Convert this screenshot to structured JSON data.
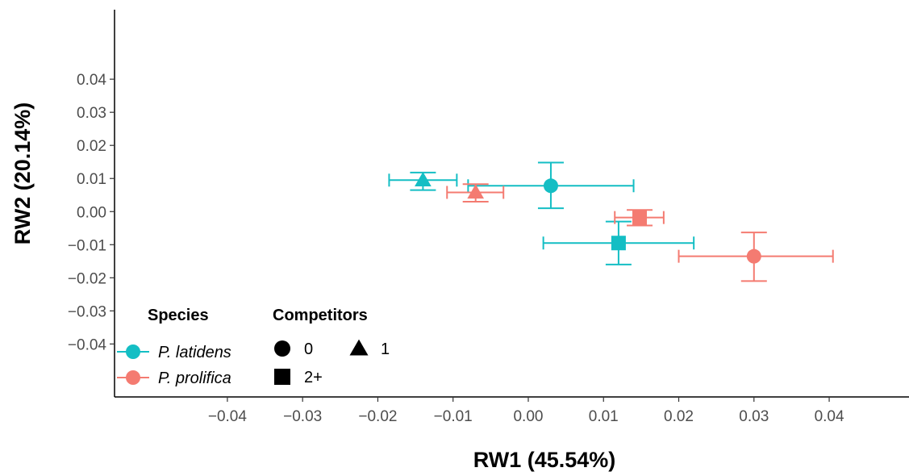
{
  "chart_data": {
    "type": "scatter",
    "xlabel": "RW1 (45.54%)",
    "ylabel": "RW2 (20.14%)",
    "xlim": [
      -0.055,
      0.049
    ],
    "ylim": [
      -0.056,
      0.061
    ],
    "x_ticks": [
      -0.04,
      -0.03,
      -0.02,
      -0.01,
      0.0,
      0.01,
      0.02,
      0.03,
      0.04
    ],
    "x_tick_labels": [
      "−0.04",
      "−0.03",
      "−0.02",
      "−0.01",
      "0.00",
      "0.01",
      "0.02",
      "0.03",
      "0.04"
    ],
    "y_ticks": [
      0.04,
      0.03,
      0.02,
      0.01,
      0.0,
      -0.01,
      -0.02,
      -0.03,
      -0.04
    ],
    "y_tick_labels": [
      "0.04",
      "0.03",
      "0.02",
      "0.01",
      "0.00",
      "−0.01",
      "−0.02",
      "−0.03",
      "−0.04"
    ],
    "grid": false,
    "legend_placement": "bottom-left",
    "colors": {
      "P. latidens": "#14bec4",
      "P. prolifica": "#f47b71"
    },
    "series": [
      {
        "name": "P. latidens",
        "color": "#14bec4",
        "points": [
          {
            "competitors": "0",
            "x": 0.003,
            "xmin": -0.008,
            "xmax": 0.014,
            "y": 0.0078,
            "ymin": 0.001,
            "ymax": 0.0148
          },
          {
            "competitors": "1",
            "x": -0.014,
            "xmin": -0.0185,
            "xmax": -0.0095,
            "y": 0.0095,
            "ymin": 0.0065,
            "ymax": 0.0118
          },
          {
            "competitors": "2+",
            "x": 0.012,
            "xmin": 0.002,
            "xmax": 0.022,
            "y": -0.0095,
            "ymin": -0.016,
            "ymax": -0.003
          }
        ]
      },
      {
        "name": "P. prolifica",
        "color": "#f47b71",
        "points": [
          {
            "competitors": "0",
            "x": 0.03,
            "xmin": 0.02,
            "xmax": 0.0405,
            "y": -0.0135,
            "ymin": -0.021,
            "ymax": -0.0063
          },
          {
            "competitors": "1",
            "x": -0.007,
            "xmin": -0.0108,
            "xmax": -0.0033,
            "y": 0.0058,
            "ymin": 0.003,
            "ymax": 0.0083
          },
          {
            "competitors": "2+",
            "x": 0.0148,
            "xmin": 0.0115,
            "xmax": 0.018,
            "y": -0.0018,
            "ymin": -0.0042,
            "ymax": 0.0005
          }
        ]
      }
    ],
    "legend": {
      "species_title": "Species",
      "species_items": [
        "P. latidens",
        "P. prolifica"
      ],
      "competitors_title": "Competitors",
      "competitors_items": [
        {
          "label": "0",
          "shape": "circle"
        },
        {
          "label": "1",
          "shape": "triangle"
        },
        {
          "label": "2+",
          "shape": "square"
        }
      ]
    }
  }
}
